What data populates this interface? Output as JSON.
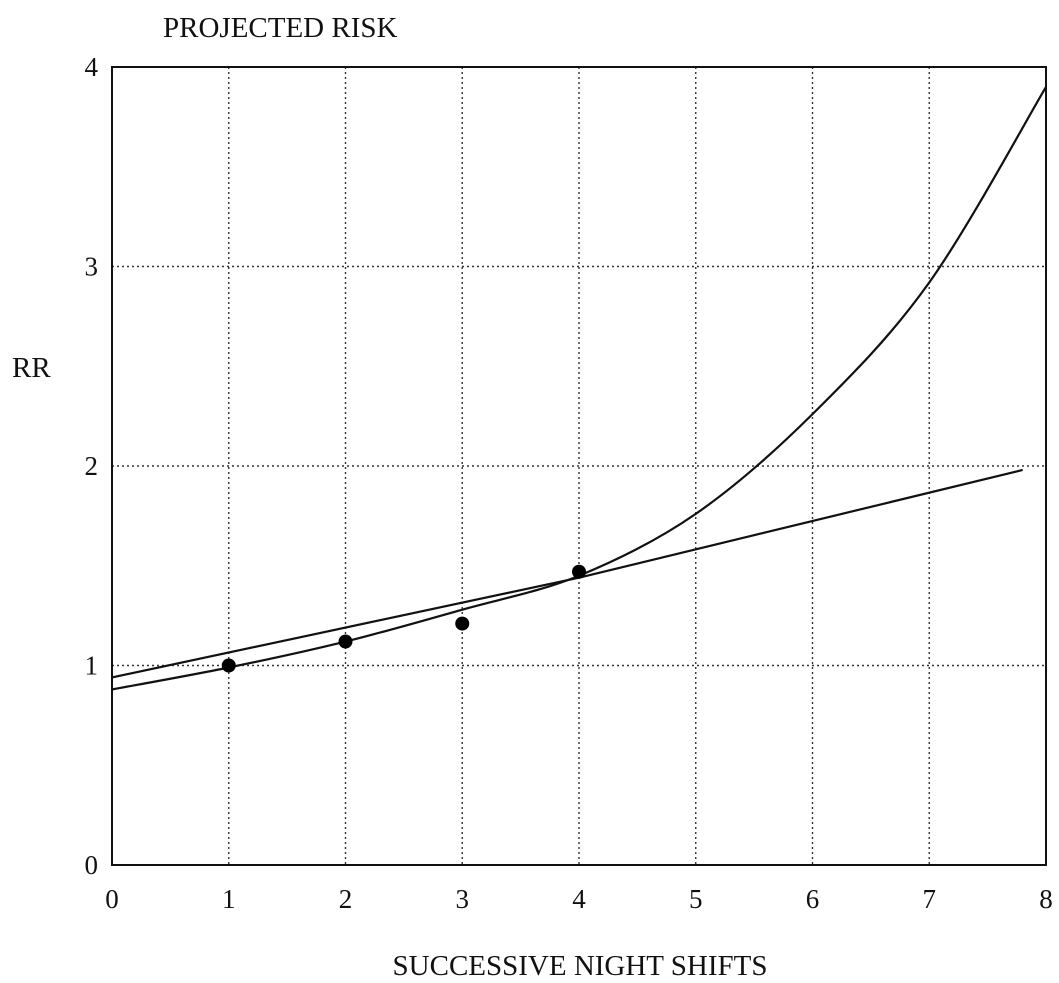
{
  "chart_data": {
    "type": "line",
    "title": "PROJECTED RISK",
    "xlabel": "SUCCESSIVE NIGHT SHIFTS",
    "ylabel": "RR",
    "xlim": [
      0,
      8
    ],
    "ylim": [
      0,
      4
    ],
    "x_ticks": [
      "0",
      "1",
      "2",
      "3",
      "4",
      "5",
      "6",
      "7",
      "8"
    ],
    "y_ticks": [
      "0",
      "1",
      "2",
      "3",
      "4"
    ],
    "grid": true,
    "points": [
      {
        "x": 1,
        "y": 1.0
      },
      {
        "x": 2,
        "y": 1.12
      },
      {
        "x": 3,
        "y": 1.21
      },
      {
        "x": 4,
        "y": 1.47
      }
    ],
    "series": [
      {
        "type": "linear",
        "x": [
          0,
          4,
          7.8
        ],
        "y": [
          0.94,
          1.44,
          1.98
        ]
      },
      {
        "type": "exponential",
        "x": [
          0,
          1,
          2,
          3,
          4,
          5,
          6,
          7,
          8
        ],
        "y": [
          0.88,
          0.99,
          1.12,
          1.28,
          1.45,
          1.76,
          2.26,
          2.92,
          3.9
        ]
      }
    ]
  }
}
